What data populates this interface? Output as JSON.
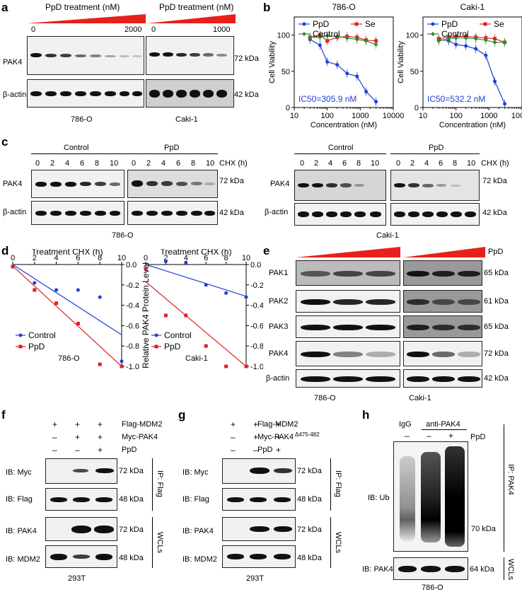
{
  "panels": {
    "a": "a",
    "b": "b",
    "c": "c",
    "d": "d",
    "e": "e",
    "f": "f",
    "g": "g",
    "h": "h"
  },
  "a": {
    "treat_left": "PpD treatment (nM)",
    "treat_right": "PpD treatment (nM)",
    "zero_left": "0",
    "max_left": "2000",
    "zero_right": "0",
    "max_right": "1000",
    "pak4": "PAK4",
    "bactin": "β-actin",
    "kda72": "72 kDa",
    "kda42": "42 kDa",
    "cell_left": "786-O",
    "cell_right": "Caki-1"
  },
  "c": {
    "control_left": "Control",
    "ppd_left": "PpD",
    "control_right": "Control",
    "ppd_right": "PpD",
    "chx": "CHX (h)",
    "times": [
      "0",
      "2",
      "4",
      "6",
      "8",
      "10"
    ],
    "pak4": "PAK4",
    "bactin": "β-actin",
    "kda72": "72 kDa",
    "kda42": "42 kDa",
    "cell_left": "786-O",
    "cell_right": "Caki-1"
  },
  "e": {
    "ppd": "PpD",
    "rows": [
      "PAK1",
      "PAK2",
      "PAK3",
      "PAK4",
      "β-actin"
    ],
    "kdas": [
      "65 kDa",
      "61 kDa",
      "65 kDa",
      "72 kDa",
      "42 kDa"
    ],
    "cell_left": "786-O",
    "cell_right": "Caki-1"
  },
  "f": {
    "rows": [
      "Flag-MDM2",
      "Myc-PAK4",
      "PpD"
    ],
    "signs": [
      [
        "+",
        "+",
        "+"
      ],
      [
        "–",
        "+",
        "+"
      ],
      [
        "–",
        "–",
        "+"
      ]
    ],
    "ib_myc": "IB: Myc",
    "ib_flag": "IB: Flag",
    "ib_pak4": "IB: PAK4",
    "ib_mdm2": "IB: MDM2",
    "kda72a": "72 kDa",
    "kda48a": "48 kDa",
    "kda72b": "72 kDa",
    "kda48b": "48 kDa",
    "ip": "IP: Flag",
    "wcl": "WCLs",
    "cell": "293T"
  },
  "g": {
    "rows": [
      "Flag-MDM2",
      "Myc-PAK4Δ475-482",
      "PpD"
    ],
    "row2_main": "Myc-PAK4",
    "row2_sup": "Δ475-482",
    "signs": [
      [
        "+",
        "+",
        "+"
      ],
      [
        "–",
        "+",
        "+"
      ],
      [
        "–",
        "–",
        "+"
      ]
    ],
    "ib_myc": "IB: Myc",
    "ib_flag": "IB: Flag",
    "ib_pak4": "IB: PAK4",
    "ib_mdm2": "IB: MDM2",
    "kda72a": "72 kDa",
    "kda48a": "48 kDa",
    "kda72b": "72 kDa",
    "kda48b": "48 kDa",
    "ip": "IP: Flag",
    "wcl": "WCLs",
    "cell": "293T"
  },
  "h": {
    "igg": "IgG",
    "anti": "anti-PAK4",
    "ppd": "PpD",
    "signs": [
      "–",
      "–",
      "+"
    ],
    "ib_ub": "IB: Ub",
    "ib_pak4": "IB: PAK4",
    "kda70": "70 kDa",
    "kda64": "64 kDa",
    "ip": "IP: PAK4",
    "wcl": "WCLs",
    "cell": "786-O"
  },
  "chart_data": [
    {
      "type": "line",
      "title": "786-O",
      "xlabel": "Concentration (nM)",
      "ylabel": "Cell Viability",
      "xscale": "log",
      "xlim": [
        10,
        10000
      ],
      "ylim": [
        0,
        125
      ],
      "xticks": [
        "10",
        "100",
        "1000",
        "10000"
      ],
      "yticks": [
        "0",
        "50",
        "100"
      ],
      "legend": [
        "PpD",
        "Se",
        "Control"
      ],
      "annotation": "IC50=305.9 nM",
      "x": [
        30,
        60,
        100,
        200,
        400,
        800,
        1500,
        3000
      ],
      "series": [
        {
          "name": "PpD",
          "color": "#1f3fd6",
          "values": [
            94,
            86,
            63,
            59,
            47,
            43,
            22,
            8
          ]
        },
        {
          "name": "Se",
          "color": "#e02020",
          "values": [
            97,
            100,
            92,
            97,
            98,
            97,
            93,
            92
          ]
        },
        {
          "name": "Control",
          "color": "#2d8a2d",
          "values": [
            97,
            97,
            99,
            98,
            96,
            94,
            92,
            87
          ]
        }
      ]
    },
    {
      "type": "line",
      "title": "Caki-1",
      "xlabel": "Concentration (nM)",
      "ylabel": "Cell Viability",
      "xscale": "log",
      "xlim": [
        10,
        10000
      ],
      "ylim": [
        0,
        125
      ],
      "xticks": [
        "10",
        "100",
        "1000",
        "10000"
      ],
      "yticks": [
        "0",
        "50",
        "100"
      ],
      "legend": [
        "PpD",
        "Se",
        "Control"
      ],
      "annotation": "IC50=532.2 nM",
      "x": [
        30,
        60,
        100,
        200,
        400,
        800,
        1500,
        3000
      ],
      "series": [
        {
          "name": "PpD",
          "color": "#1f3fd6",
          "values": [
            94,
            92,
            87,
            85,
            81,
            72,
            36,
            5
          ]
        },
        {
          "name": "Se",
          "color": "#e02020",
          "values": [
            95,
            97,
            98,
            98,
            97,
            96,
            95,
            90
          ]
        },
        {
          "name": "Control",
          "color": "#2d8a2d",
          "values": [
            92,
            95,
            96,
            96,
            95,
            93,
            90,
            90
          ]
        }
      ]
    },
    {
      "type": "scatter",
      "title": "786-O",
      "xlabel": "Treatment CHX (h)",
      "ylabel": "Relative PAK4 Protein Level",
      "xlim": [
        0,
        10
      ],
      "ylim": [
        -1.0,
        0.0
      ],
      "xticks": [
        "0",
        "2",
        "4",
        "6",
        "8",
        "10"
      ],
      "yticks": [
        "0.0",
        "-0.2",
        "-0.4",
        "-0.6",
        "-0.8",
        "-1.0"
      ],
      "legend": [
        "Control",
        "PpD"
      ],
      "x": [
        0,
        2,
        4,
        6,
        8,
        10
      ],
      "series": [
        {
          "name": "Control",
          "color": "#1f3fd6",
          "values": [
            -0.02,
            -0.18,
            -0.25,
            -0.25,
            -0.32,
            -0.95
          ]
        },
        {
          "name": "PpD",
          "color": "#e02020",
          "values": [
            -0.02,
            -0.25,
            -0.38,
            -0.58,
            -0.98,
            -1.0
          ]
        }
      ]
    },
    {
      "type": "scatter",
      "title": "Caki-1",
      "xlabel": "Treatment CHX (h)",
      "ylabel": "Relative PAK4 Protein Level",
      "xlim": [
        0,
        10
      ],
      "ylim": [
        -1.0,
        0.0
      ],
      "xticks": [
        "0",
        "2",
        "4",
        "6",
        "8",
        "10"
      ],
      "yticks": [
        "0.0",
        "-0.2",
        "-0.4",
        "-0.6",
        "-0.8",
        "-1.0"
      ],
      "legend": [
        "Control",
        "PpD"
      ],
      "x": [
        0,
        2,
        4,
        6,
        8,
        10
      ],
      "series": [
        {
          "name": "Control",
          "color": "#1f3fd6",
          "values": [
            -0.05,
            0.03,
            0.02,
            -0.2,
            -0.28,
            -0.32
          ]
        },
        {
          "name": "PpD",
          "color": "#e02020",
          "values": [
            -0.04,
            -0.5,
            -0.5,
            -0.8,
            -1.0,
            -1.0
          ]
        }
      ]
    }
  ]
}
